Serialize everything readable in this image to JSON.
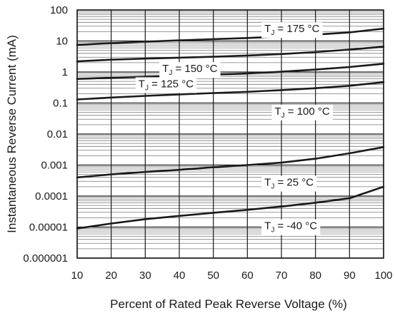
{
  "chart_data": {
    "type": "line",
    "title": "",
    "xlabel": "Percent of Rated Peak Reverse Voltage (%)",
    "ylabel": "Instantaneous Reverse Current (mA)",
    "x_scale": "linear",
    "y_scale": "log",
    "xlim": [
      10,
      100
    ],
    "ylim": [
      1e-06,
      100
    ],
    "grid": true,
    "legend": "none",
    "x_ticks": [
      10,
      20,
      30,
      40,
      50,
      60,
      70,
      80,
      90,
      100
    ],
    "x_tick_labels": [
      "10",
      "20",
      "30",
      "40",
      "50",
      "60",
      "70",
      "80",
      "90",
      "100"
    ],
    "y_ticks": [
      100,
      10,
      1,
      0.1,
      0.01,
      0.001,
      0.0001,
      1e-05,
      1e-06
    ],
    "y_tick_labels": [
      "100",
      "10",
      "1",
      "0.1",
      "0.01",
      "0.001",
      "0.0001",
      "0.00001",
      "0.000001"
    ],
    "x": [
      10,
      20,
      30,
      40,
      50,
      60,
      70,
      80,
      90,
      100
    ],
    "series": [
      {
        "label_main": "T",
        "label_sub": "J",
        "label_rest": " = 175 °C",
        "label_at": [
          65,
          25
        ],
        "values": [
          7.5,
          8.5,
          9.5,
          10.5,
          11.5,
          12.5,
          14,
          16,
          19,
          25
        ]
      },
      {
        "label_main": "T",
        "label_sub": "J",
        "label_rest": " = 150 °C",
        "label_at": [
          35,
          1.3
        ],
        "values": [
          2.2,
          2.5,
          2.7,
          2.9,
          3.1,
          3.4,
          3.8,
          4.4,
          5.3,
          6.5
        ]
      },
      {
        "label_main": "T",
        "label_sub": "J",
        "label_rest": " = 125 °C",
        "label_at": [
          28,
          0.42
        ],
        "values": [
          0.6,
          0.65,
          0.7,
          0.75,
          0.82,
          0.9,
          1.02,
          1.2,
          1.45,
          1.85
        ]
      },
      {
        "label_main": "T",
        "label_sub": "J",
        "label_rest": " = 100 °C",
        "label_at": [
          68,
          0.055
        ],
        "values": [
          0.13,
          0.15,
          0.17,
          0.19,
          0.21,
          0.23,
          0.26,
          0.3,
          0.36,
          0.47
        ]
      },
      {
        "label_main": "T",
        "label_sub": "J",
        "label_rest": " = 25 °C",
        "label_at": [
          65,
          0.00028
        ],
        "values": [
          0.0004,
          0.0005,
          0.0006,
          0.0007,
          0.00085,
          0.001,
          0.0012,
          0.0016,
          0.0024,
          0.0038
        ]
      },
      {
        "label_main": "T",
        "label_sub": "J",
        "label_rest": " = -40 °C",
        "label_at": [
          65,
          1.1e-05
        ],
        "values": [
          9e-06,
          1.3e-05,
          1.8e-05,
          2.3e-05,
          2.9e-05,
          3.6e-05,
          4.6e-05,
          6.1e-05,
          8.5e-05,
          0.0002
        ]
      }
    ]
  }
}
